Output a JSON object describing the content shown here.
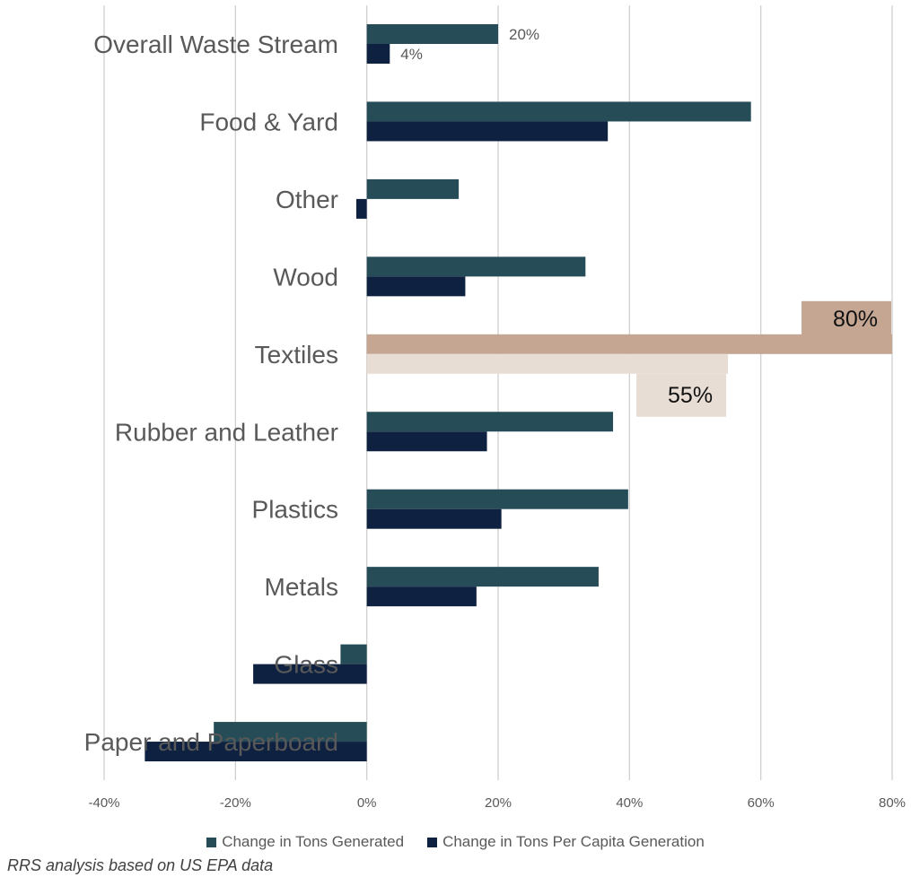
{
  "chart_data": {
    "type": "bar",
    "orientation": "horizontal",
    "categories": [
      "Overall Waste Stream",
      "Food & Yard",
      "Other",
      "Wood",
      "Textiles",
      "Rubber and Leather",
      "Plastics",
      "Metals",
      "Glass",
      "Paper and Paperboard"
    ],
    "series": [
      {
        "name": "Change in Tons Generated",
        "color": "#264d57",
        "values": [
          20,
          58.5,
          14,
          33.3,
          80,
          37.5,
          39.8,
          35.3,
          -4,
          -23.3
        ]
      },
      {
        "name": "Change in Tons Per Capita Generation",
        "color": "#0e2140",
        "values": [
          3.5,
          36.7,
          -1.6,
          15,
          55,
          18.3,
          20.5,
          16.7,
          -17.3,
          -33.8
        ]
      }
    ],
    "highlight": {
      "category": "Textiles",
      "colors": [
        "#c4a693",
        "#e8ddd5"
      ]
    },
    "data_labels": [
      {
        "category": "Overall Waste Stream",
        "series": 0,
        "text": "20%"
      },
      {
        "category": "Overall Waste Stream",
        "series": 1,
        "text": "4%"
      },
      {
        "category": "Textiles",
        "series": 0,
        "text": "80%"
      },
      {
        "category": "Textiles",
        "series": 1,
        "text": "55%"
      }
    ],
    "xlim": [
      -40,
      80
    ],
    "x_ticks": [
      -40,
      -20,
      0,
      20,
      40,
      60,
      80
    ],
    "x_tick_labels": [
      "-40%",
      "-20%",
      "0%",
      "20%",
      "40%",
      "60%",
      "80%"
    ],
    "grid": true,
    "legend_position": "bottom"
  },
  "legend": {
    "series0": "Change in Tons Generated",
    "series1": "Change in Tons Per Capita Generation"
  },
  "source": "RRS analysis based on US EPA data"
}
